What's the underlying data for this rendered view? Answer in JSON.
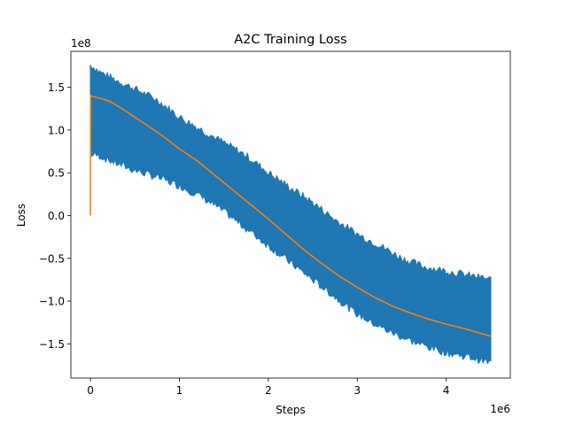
{
  "chart_data": {
    "type": "line",
    "title": "A2C Training Loss",
    "xlabel": "Steps",
    "ylabel": "Loss",
    "x_offset_label": "1e6",
    "y_offset_label": "1e8",
    "xlim": [
      -220000,
      4720000
    ],
    "ylim": [
      -190000000,
      192000000
    ],
    "x_ticks": [
      0,
      1,
      2,
      3,
      4
    ],
    "x_tick_labels": [
      "0",
      "1",
      "2",
      "3",
      "4"
    ],
    "y_ticks": [
      150000000,
      100000000,
      50000000,
      0,
      -50000000,
      -100000000,
      -150000000
    ],
    "y_tick_labels": [
      "1.5",
      "1.0",
      "0.5",
      "0.0",
      "−0.5",
      "−1.0",
      "−1.5"
    ],
    "grid": false,
    "legend": "none",
    "colors": {
      "raw": "#1f77b4",
      "smoothed": "#ff7f0e"
    },
    "series": [
      {
        "role": "raw-loss-envelope",
        "x": [
          0,
          100000,
          250000,
          500000,
          750000,
          1000000,
          1250000,
          1500000,
          1750000,
          2000000,
          2250000,
          2500000,
          2750000,
          3000000,
          3250000,
          3500000,
          3750000,
          4000000,
          4250000,
          4500000
        ],
        "upper": [
          176000000,
          168000000,
          160000000,
          148000000,
          135000000,
          115000000,
          100000000,
          85000000,
          70000000,
          50000000,
          32000000,
          15000000,
          -5000000,
          -22000000,
          -35000000,
          -50000000,
          -60000000,
          -65000000,
          -70000000,
          -75000000
        ],
        "lower": [
          72000000,
          70000000,
          63000000,
          53000000,
          45000000,
          35000000,
          22000000,
          5000000,
          -15000000,
          -35000000,
          -55000000,
          -75000000,
          -95000000,
          -115000000,
          -130000000,
          -142000000,
          -152000000,
          -160000000,
          -165000000,
          -172000000
        ]
      },
      {
        "role": "smoothed-loss",
        "x": [
          0,
          2000,
          5000,
          150000,
          230000,
          400000,
          600000,
          800000,
          1000000,
          1200000,
          1400000,
          1600000,
          1800000,
          2000000,
          2200000,
          2400000,
          2600000,
          2800000,
          3000000,
          3200000,
          3400000,
          3600000,
          3800000,
          4000000,
          4200000,
          4500000
        ],
        "y": [
          0,
          141000000,
          140000000,
          136000000,
          133000000,
          122000000,
          108000000,
          94000000,
          78000000,
          64000000,
          47000000,
          30000000,
          13000000,
          -4000000,
          -22000000,
          -40000000,
          -56000000,
          -71000000,
          -84000000,
          -96000000,
          -106000000,
          -114000000,
          -121000000,
          -127000000,
          -132000000,
          -141000000
        ]
      }
    ]
  }
}
